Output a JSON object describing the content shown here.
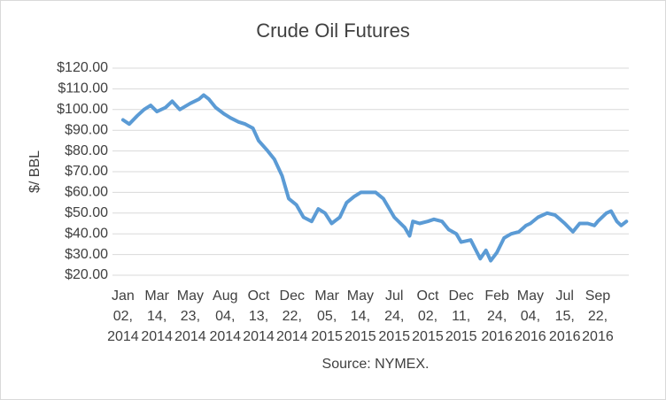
{
  "chart_data": {
    "type": "line",
    "title": "Crude Oil Futures",
    "y_label": "$/ BBL",
    "source": "Source: NYMEX.",
    "grid": true,
    "xlim": [
      "2013-12-11",
      "2016-11-26"
    ],
    "xticks": [
      {
        "value": "2014-01-02",
        "label": "Jan 02, 2014"
      },
      {
        "value": "2014-03-14",
        "label": "Mar 14, 2014"
      },
      {
        "value": "2014-05-23",
        "label": "May 23, 2014"
      },
      {
        "value": "2014-08-04",
        "label": "Aug 04, 2014"
      },
      {
        "value": "2014-10-13",
        "label": "Oct 13, 2014"
      },
      {
        "value": "2014-12-22",
        "label": "Dec 22, 2014"
      },
      {
        "value": "2015-03-05",
        "label": "Mar 05, 2015"
      },
      {
        "value": "2015-05-14",
        "label": "May 14, 2015"
      },
      {
        "value": "2015-07-24",
        "label": "Jul 24, 2015"
      },
      {
        "value": "2015-10-02",
        "label": "Oct 02, 2015"
      },
      {
        "value": "2015-12-11",
        "label": "Dec 11, 2015"
      },
      {
        "value": "2016-02-24",
        "label": "Feb 24, 2016"
      },
      {
        "value": "2016-05-04",
        "label": "May 04, 2016"
      },
      {
        "value": "2016-07-15",
        "label": "Jul 15, 2016"
      },
      {
        "value": "2016-09-22",
        "label": "Sep 22, 2016"
      }
    ],
    "ylim": [
      20,
      120
    ],
    "yticks": [
      {
        "value": 20,
        "label": "$20.00"
      },
      {
        "value": 30,
        "label": "$30.00"
      },
      {
        "value": 40,
        "label": "$40.00"
      },
      {
        "value": 50,
        "label": "$50.00"
      },
      {
        "value": 60,
        "label": "$60.00"
      },
      {
        "value": 70,
        "label": "$70.00"
      },
      {
        "value": 80,
        "label": "$80.00"
      },
      {
        "value": 90,
        "label": "$90.00"
      },
      {
        "value": 100,
        "label": "$100.00"
      },
      {
        "value": 110,
        "label": "$110.00"
      },
      {
        "value": 120,
        "label": "$120.00"
      }
    ],
    "x": [
      "2014-01-02",
      "2014-01-15",
      "2014-02-01",
      "2014-02-15",
      "2014-03-01",
      "2014-03-14",
      "2014-04-01",
      "2014-04-15",
      "2014-05-01",
      "2014-05-23",
      "2014-06-10",
      "2014-06-20",
      "2014-07-01",
      "2014-07-15",
      "2014-08-01",
      "2014-08-15",
      "2014-09-01",
      "2014-09-15",
      "2014-10-01",
      "2014-10-13",
      "2014-11-01",
      "2014-11-15",
      "2014-12-01",
      "2014-12-15",
      "2014-12-31",
      "2015-01-15",
      "2015-02-01",
      "2015-02-15",
      "2015-03-01",
      "2015-03-15",
      "2015-04-01",
      "2015-04-15",
      "2015-05-01",
      "2015-05-15",
      "2015-06-01",
      "2015-06-15",
      "2015-07-01",
      "2015-07-24",
      "2015-08-15",
      "2015-08-25",
      "2015-09-01",
      "2015-09-15",
      "2015-10-02",
      "2015-10-15",
      "2015-11-01",
      "2015-11-15",
      "2015-12-01",
      "2015-12-11",
      "2015-12-31",
      "2016-01-20",
      "2016-02-01",
      "2016-02-11",
      "2016-02-24",
      "2016-03-10",
      "2016-03-25",
      "2016-04-10",
      "2016-04-25",
      "2016-05-04",
      "2016-05-20",
      "2016-06-08",
      "2016-06-25",
      "2016-07-05",
      "2016-07-15",
      "2016-08-01",
      "2016-08-15",
      "2016-09-01",
      "2016-09-15",
      "2016-09-22",
      "2016-10-10",
      "2016-10-20",
      "2016-11-01",
      "2016-11-10",
      "2016-11-21"
    ],
    "series": [
      {
        "name": "Crude Oil",
        "color": "#5b9bd5",
        "values": [
          95,
          93,
          97,
          100,
          102,
          99,
          101,
          104,
          100,
          103,
          105,
          107,
          105,
          101,
          98,
          96,
          94,
          93,
          91,
          85,
          80,
          76,
          68,
          57,
          54,
          48,
          46,
          52,
          50,
          45,
          48,
          55,
          58,
          60,
          60,
          60,
          57,
          48,
          43,
          39,
          46,
          45,
          46,
          47,
          46,
          42,
          40,
          36,
          37,
          28,
          32,
          27,
          31,
          38,
          40,
          41,
          44,
          45,
          48,
          50,
          49,
          47,
          45,
          41,
          45,
          45,
          44,
          46,
          50,
          51,
          46,
          44,
          46
        ]
      }
    ]
  }
}
